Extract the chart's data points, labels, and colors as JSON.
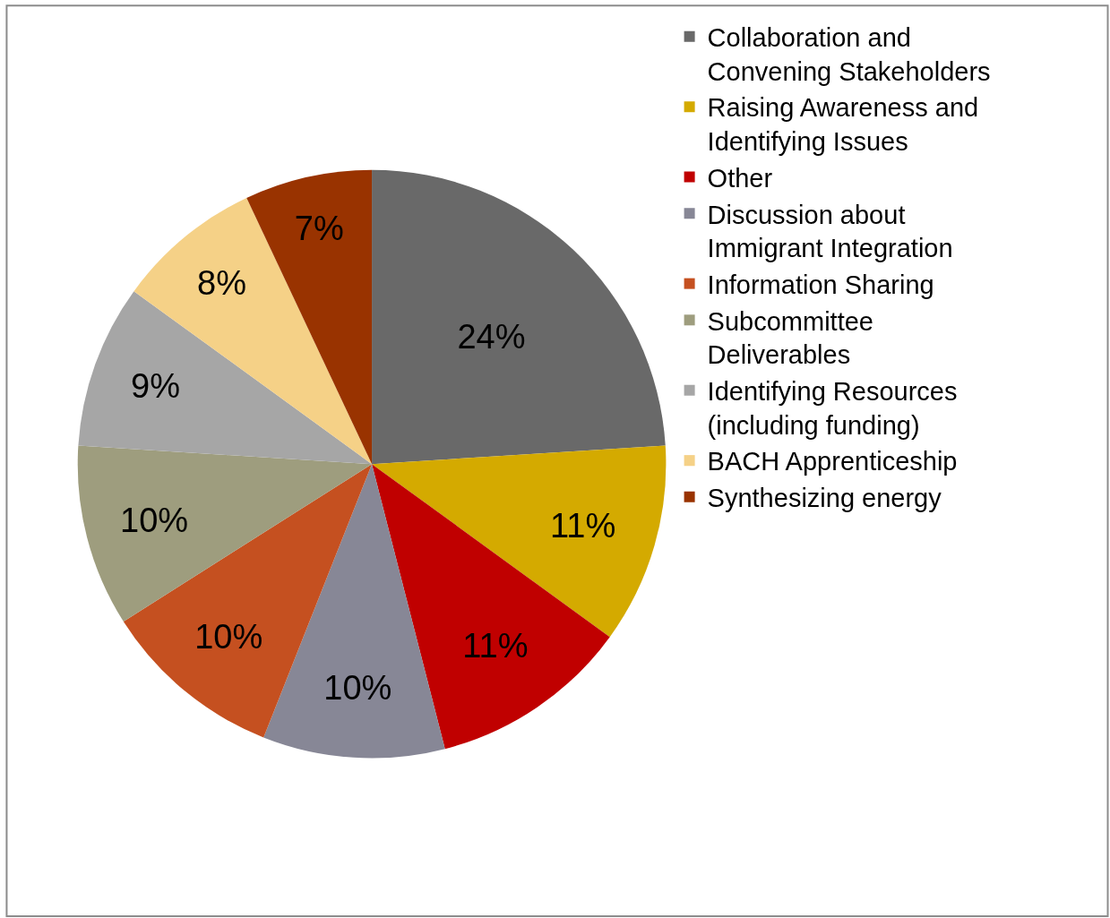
{
  "chart_data": {
    "type": "pie",
    "categories": [
      "Collaboration and Convening Stakeholders",
      "Raising Awareness and Identifying Issues",
      "Other",
      "Discussion about Immigrant Integration",
      "Information Sharing",
      "Subcommittee Deliverables",
      "Identifying Resources (including funding)",
      "BACH Apprenticeship",
      "Synthesizing energy"
    ],
    "values": [
      24,
      11,
      11,
      10,
      10,
      10,
      9,
      8,
      7
    ],
    "colors": [
      "#696969",
      "#d4aa00",
      "#c00000",
      "#878796",
      "#c55020",
      "#9e9d7e",
      "#a6a6a6",
      "#f5d187",
      "#993300"
    ],
    "value_labels": [
      "24%",
      "11%",
      "11%",
      "10%",
      "10%",
      "10%",
      "9%",
      "8%",
      "7%"
    ],
    "legend": "right"
  }
}
